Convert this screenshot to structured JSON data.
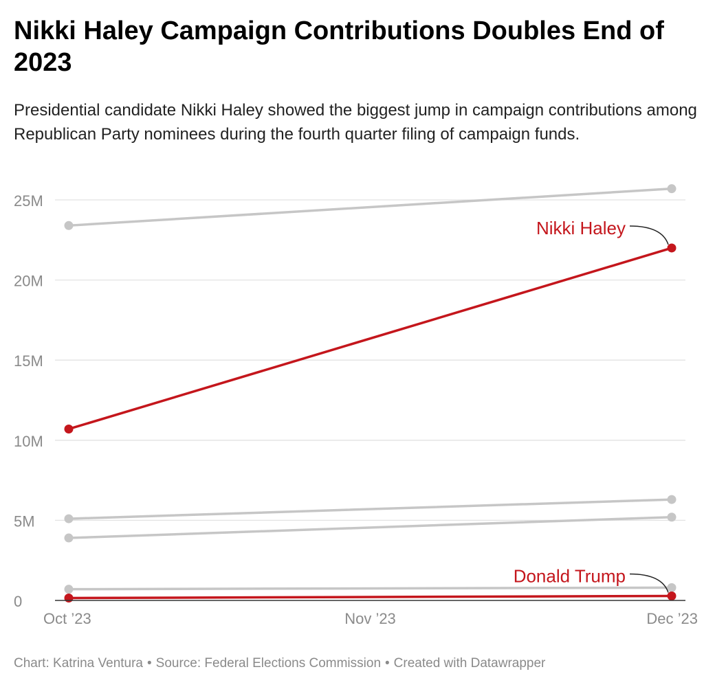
{
  "header": {
    "title": "Nikki Haley Campaign Contributions Doubles End of 2023",
    "subtitle": "Presidential candidate Nikki Haley showed the biggest jump in campaign contributions among Republican Party nominees during the fourth quarter filing of campaign funds."
  },
  "footer": {
    "chart_credit": "Chart: Katrina Ventura",
    "source": "Source: Federal Elections Commission",
    "tool": "Created with Datawrapper",
    "separator": "•"
  },
  "colors": {
    "highlight": "#c4161c",
    "muted": "#c6c6c6",
    "grid": "#e2e2e2",
    "axis_text": "#8a8a8a"
  },
  "chart_data": {
    "type": "line",
    "x": [
      "Oct ’23",
      "Nov ’23",
      "Dec ’23"
    ],
    "ylim": [
      0,
      25000000
    ],
    "yticks": [
      0,
      5000000,
      10000000,
      15000000,
      20000000,
      25000000
    ],
    "ytick_labels": [
      "0",
      "5M",
      "10M",
      "15M",
      "20M",
      "25M"
    ],
    "grid": true,
    "series": [
      {
        "name": "",
        "highlight": false,
        "points": [
          {
            "x": "Oct ’23",
            "y": 23400000
          },
          {
            "x": "Dec ’23",
            "y": 25700000
          }
        ]
      },
      {
        "name": "",
        "highlight": false,
        "points": [
          {
            "x": "Oct ’23",
            "y": 5100000
          },
          {
            "x": "Dec ’23",
            "y": 6300000
          }
        ]
      },
      {
        "name": "",
        "highlight": false,
        "points": [
          {
            "x": "Oct ’23",
            "y": 3900000
          },
          {
            "x": "Dec ’23",
            "y": 5200000
          }
        ]
      },
      {
        "name": "",
        "highlight": false,
        "points": [
          {
            "x": "Oct ’23",
            "y": 700000
          },
          {
            "x": "Dec ’23",
            "y": 800000
          }
        ]
      },
      {
        "name": "Nikki Haley",
        "highlight": true,
        "points": [
          {
            "x": "Oct ’23",
            "y": 10700000
          },
          {
            "x": "Dec ’23",
            "y": 22000000
          }
        ]
      },
      {
        "name": "Donald Trump",
        "highlight": true,
        "points": [
          {
            "x": "Oct ’23",
            "y": 150000
          },
          {
            "x": "Dec ’23",
            "y": 280000
          }
        ]
      }
    ]
  }
}
